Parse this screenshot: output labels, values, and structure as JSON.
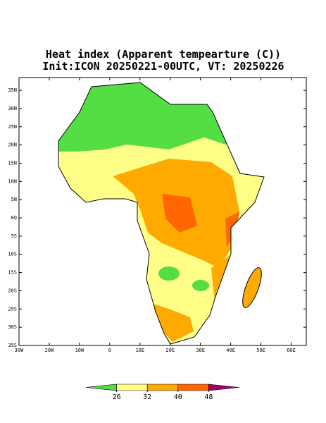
{
  "title": "Heat index (Apparent tempearture (C))",
  "subtitle": "Init:ICON 20250221-00UTC, VT: 20250226",
  "map": {
    "latlim": [
      -35,
      38.5
    ],
    "lonlim": [
      -30,
      65
    ],
    "lat_ticks": [
      {
        "value": 35,
        "label": "35N"
      },
      {
        "value": 30,
        "label": "30N"
      },
      {
        "value": 25,
        "label": "25N"
      },
      {
        "value": 20,
        "label": "20N"
      },
      {
        "value": 15,
        "label": "15N"
      },
      {
        "value": 10,
        "label": "10N"
      },
      {
        "value": 5,
        "label": "5N"
      },
      {
        "value": 0,
        "label": "EQ"
      },
      {
        "value": -5,
        "label": "5S"
      },
      {
        "value": -10,
        "label": "10S"
      },
      {
        "value": -15,
        "label": "15S"
      },
      {
        "value": -20,
        "label": "20S"
      },
      {
        "value": -25,
        "label": "25S"
      },
      {
        "value": -30,
        "label": "30S"
      },
      {
        "value": -35,
        "label": "35S"
      }
    ],
    "lon_ticks": [
      {
        "value": -30,
        "label": "30W"
      },
      {
        "value": -20,
        "label": "20W"
      },
      {
        "value": -10,
        "label": "10W"
      },
      0,
      {
        "value": 10,
        "label": "10E"
      },
      {
        "value": 20,
        "label": "20E"
      },
      {
        "value": 30,
        "label": "30E"
      },
      {
        "value": 40,
        "label": "40E"
      },
      {
        "value": 50,
        "label": "50E"
      },
      {
        "value": 60,
        "label": "60E"
      }
    ]
  },
  "colorbar": {
    "colors": [
      "#55dd44",
      "#ffff88",
      "#ffaa00",
      "#ff6600",
      "#aa0066"
    ],
    "ticks": [
      26,
      32,
      40,
      48
    ]
  }
}
